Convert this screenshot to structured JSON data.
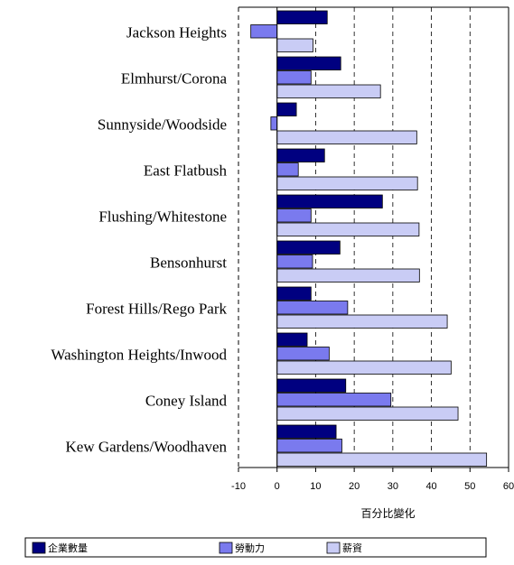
{
  "chart_data": {
    "type": "bar",
    "orientation": "horizontal",
    "categories": [
      "Jackson Heights",
      "Elmhurst/Corona",
      "Sunnyside/Woodside",
      "East Flatbush",
      "Flushing/Whitestone",
      "Bensonhurst",
      "Forest Hills/Rego Park",
      "Washington Heights/Inwood",
      "Coney Island",
      "Kew Gardens/Woodhaven"
    ],
    "series": [
      {
        "name": "企業數量",
        "color": "#000080",
        "values": [
          13,
          16.5,
          5,
          12.3,
          27.3,
          16.3,
          8.8,
          7.8,
          17.8,
          15.3
        ]
      },
      {
        "name": "勞動力",
        "color": "#7A7AEE",
        "values": [
          -6.8,
          8.8,
          -1.6,
          5.5,
          8.8,
          9.2,
          18.3,
          13.5,
          29.5,
          16.8
        ]
      },
      {
        "name": "薪資",
        "color": "#C9CCF5",
        "values": [
          9.3,
          26.8,
          36.2,
          36.4,
          36.8,
          36.9,
          44.1,
          45.1,
          46.9,
          54.3
        ]
      }
    ],
    "xlabel": "百分比變化",
    "ylabel": "",
    "title": "",
    "xlim": [
      -10,
      60
    ],
    "xticks": [
      -10,
      0,
      10,
      20,
      30,
      40,
      50,
      60
    ],
    "grid": "vertical-dashed",
    "legend_position": "bottom"
  }
}
